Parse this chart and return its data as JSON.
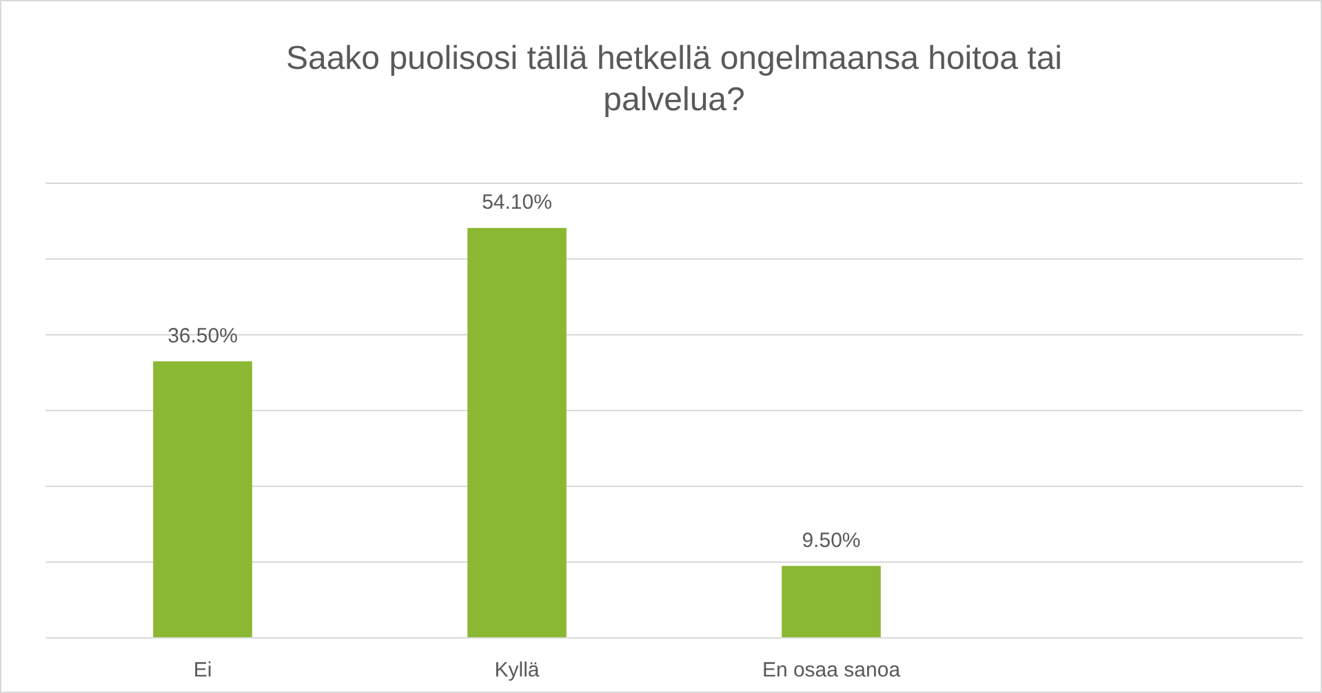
{
  "chart_data": {
    "type": "bar",
    "title": "Saako puolisosi tällä hetkellä ongelmaansa hoitoa tai palvelua?",
    "categories": [
      "Ei",
      "Kyllä",
      "En osaa sanoa",
      null
    ],
    "values": [
      36.5,
      54.1,
      9.5,
      null
    ],
    "value_labels": [
      "36.50%",
      "54.10%",
      "9.50%",
      null
    ],
    "color": "#8bb832",
    "ylim": [
      0,
      60
    ],
    "yticks": [
      {
        "value": 0,
        "label": null
      },
      {
        "value": 10,
        "label": null
      },
      {
        "value": 20,
        "label": null
      },
      {
        "value": 30,
        "label": null
      },
      {
        "value": 40,
        "label": null
      },
      {
        "value": 50,
        "label": null
      },
      {
        "value": 60,
        "label": null
      }
    ],
    "grid": "y",
    "tick_labels": "x"
  }
}
